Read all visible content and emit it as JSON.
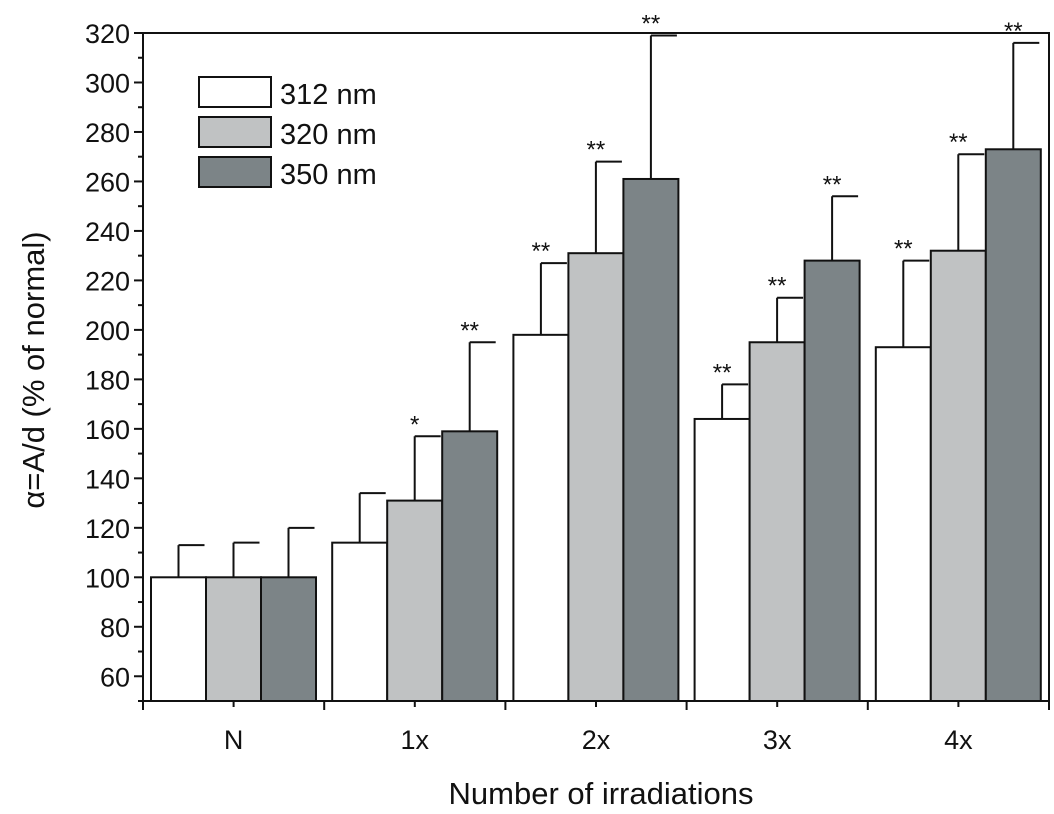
{
  "chart_data": {
    "type": "bar",
    "title": "",
    "xlabel": "Number of irradiations",
    "ylabel": "α=A/d (% of normal)",
    "ylim": [
      50,
      320
    ],
    "yticks": [
      60,
      80,
      100,
      120,
      140,
      160,
      180,
      200,
      220,
      240,
      260,
      280,
      300,
      320
    ],
    "categories": [
      "N",
      "1x",
      "2x",
      "3x",
      "4x"
    ],
    "legend_position": "top-left",
    "grid": false,
    "series": [
      {
        "name": "312 nm",
        "color": "#ffffff",
        "values": [
          100,
          114,
          198,
          164,
          193
        ],
        "errors": [
          13,
          20,
          29,
          14,
          35
        ],
        "significance": [
          "",
          "",
          "**",
          "**",
          "**"
        ]
      },
      {
        "name": "320 nm",
        "color": "#c0c2c3",
        "values": [
          100,
          131,
          231,
          195,
          232
        ],
        "errors": [
          14,
          26,
          37,
          18,
          39
        ],
        "significance": [
          "",
          "*",
          "**",
          "**",
          "**"
        ]
      },
      {
        "name": "350 nm",
        "color": "#7c8487",
        "values": [
          100,
          159,
          261,
          228,
          273
        ],
        "errors": [
          20,
          36,
          58,
          26,
          43
        ],
        "significance": [
          "",
          "**",
          "**",
          "**",
          "**"
        ]
      }
    ]
  }
}
